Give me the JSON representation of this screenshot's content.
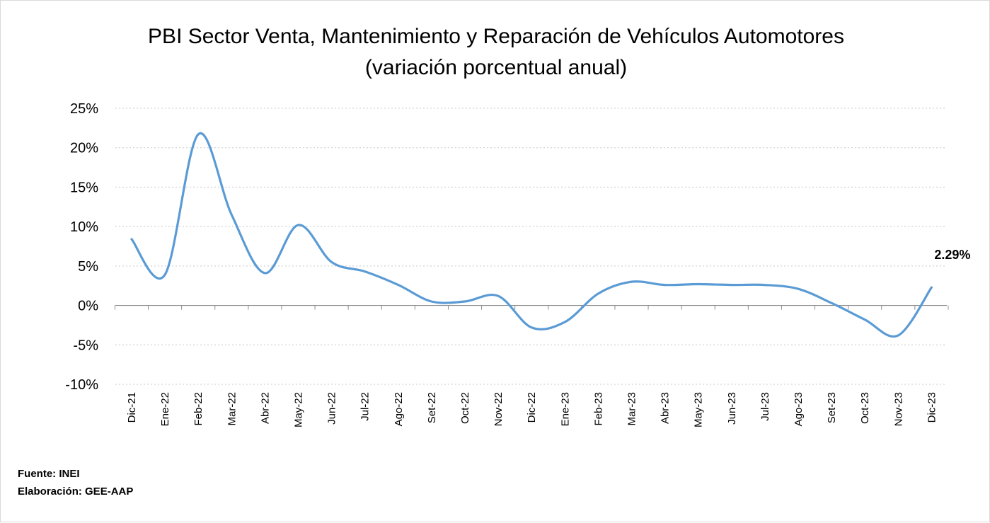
{
  "chart_data": {
    "type": "line",
    "title": "PBI Sector Venta, Mantenimiento y Reparación de Vehículos Automotores",
    "subtitle": "(variación porcentual anual)",
    "categories": [
      "Dic-21",
      "Ene-22",
      "Feb-22",
      "Mar-22",
      "Abr-22",
      "May-22",
      "Jun-22",
      "Jul-22",
      "Ago-22",
      "Set-22",
      "Oct-22",
      "Nov-22",
      "Dic-22",
      "Ene-23",
      "Feb-23",
      "Mar-23",
      "Abr-23",
      "May-23",
      "Jun-23",
      "Jul-23",
      "Ago-23",
      "Set-23",
      "Oct-23",
      "Nov-23",
      "Dic-23"
    ],
    "series": [
      {
        "values": [
          8.4,
          3.9,
          21.7,
          11.5,
          4.1,
          10.2,
          5.5,
          4.3,
          2.6,
          0.5,
          0.5,
          1.2,
          -2.8,
          -2.1,
          1.5,
          3.0,
          2.6,
          2.7,
          2.6,
          2.6,
          2.1,
          0.3,
          -1.8,
          -3.8,
          2.29
        ],
        "color": "#5b9bd5"
      }
    ],
    "ylim": [
      -10,
      25
    ],
    "yticks": [
      25,
      20,
      15,
      10,
      5,
      0,
      -5,
      -10
    ],
    "ytick_labels": [
      "25%",
      "20%",
      "15%",
      "10%",
      "5%",
      "0%",
      "-5%",
      "-10%"
    ],
    "grid": true,
    "data_labels": [
      {
        "index": 24,
        "text": "2.29%"
      }
    ]
  },
  "footer": {
    "source": "Fuente: INEI",
    "credit": "Elaboración: GEE-AAP"
  }
}
